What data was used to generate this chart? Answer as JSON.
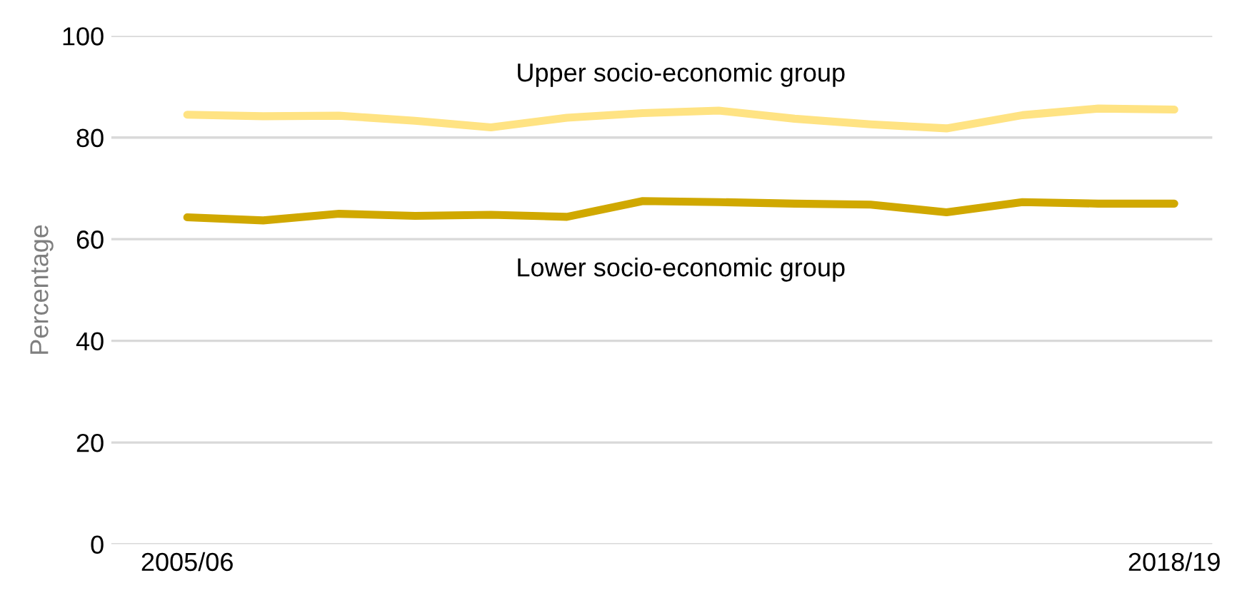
{
  "chart_data": {
    "type": "line",
    "ylabel": "Percentage",
    "categories": [
      "2005/06",
      null,
      null,
      null,
      null,
      null,
      null,
      null,
      null,
      null,
      null,
      null,
      null,
      "2018/19"
    ],
    "series": [
      {
        "name": "Upper socio-economic group",
        "color": "#ffe383",
        "values": [
          84.5,
          84.2,
          84.3,
          83.3,
          82,
          83.9,
          84.8,
          85.3,
          83.7,
          82.6,
          81.8,
          84.4,
          85.7,
          85.5
        ]
      },
      {
        "name": "Lower socio-economic group",
        "color": "#d0a800",
        "values": [
          64.3,
          63.7,
          65,
          64.6,
          64.8,
          64.4,
          67.5,
          67.3,
          67,
          66.8,
          65.3,
          67.3,
          67,
          67
        ]
      }
    ],
    "ylim": [
      0,
      100
    ],
    "yticks": [
      0,
      20,
      40,
      60,
      80,
      100
    ],
    "grid": "y",
    "legend": false,
    "marker": "none",
    "line_style": "solid"
  }
}
